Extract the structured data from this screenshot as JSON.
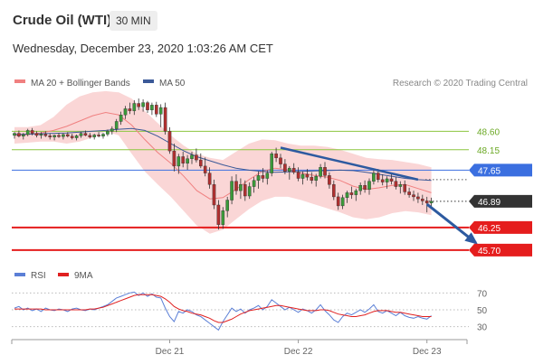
{
  "header": {
    "title": "Crude Oil (WTI)",
    "timeframe": "30 MIN",
    "datetime": "Wednesday, December 23, 2020 1:03:26 AM CET"
  },
  "legend_top": {
    "items": [
      {
        "label": "MA 20 + Bollinger Bands",
        "color": "#f08080"
      },
      {
        "label": "MA 50",
        "color": "#3b5998"
      }
    ],
    "credit": "Research © 2020 Trading Central"
  },
  "legend_bottom": {
    "items": [
      {
        "label": "RSI",
        "color": "#5b7fd6"
      },
      {
        "label": "9MA",
        "color": "#e02020"
      }
    ]
  },
  "chart_data": {
    "type": "candlestick",
    "price_axis": {
      "range": [
        45.3,
        49.6
      ]
    },
    "levels": [
      {
        "value": 48.6,
        "label": "48.60",
        "color": "#8cc63f",
        "kind": "resistance",
        "style": "text"
      },
      {
        "value": 48.15,
        "label": "48.15",
        "color": "#8cc63f",
        "kind": "resistance",
        "style": "text"
      },
      {
        "value": 47.65,
        "label": "47.65",
        "color": "#3b6fe0",
        "kind": "pivot",
        "style": "tag"
      },
      {
        "value": 46.89,
        "label": "46.89",
        "color": "#333333",
        "kind": "last",
        "style": "tag"
      },
      {
        "value": 46.25,
        "label": "46.25",
        "color": "#e51d1d",
        "kind": "support",
        "style": "tag"
      },
      {
        "value": 45.7,
        "label": "45.70",
        "color": "#e51d1d",
        "kind": "support",
        "style": "tag"
      }
    ],
    "candles": [
      [
        48.5,
        48.58,
        48.42,
        48.55
      ],
      [
        48.55,
        48.62,
        48.45,
        48.48
      ],
      [
        48.48,
        48.56,
        48.4,
        48.52
      ],
      [
        48.52,
        48.66,
        48.48,
        48.62
      ],
      [
        48.62,
        48.68,
        48.5,
        48.55
      ],
      [
        48.55,
        48.6,
        48.45,
        48.5
      ],
      [
        48.5,
        48.58,
        48.42,
        48.53
      ],
      [
        48.53,
        48.6,
        48.46,
        48.49
      ],
      [
        48.49,
        48.55,
        48.4,
        48.46
      ],
      [
        48.46,
        48.52,
        48.38,
        48.5
      ],
      [
        48.5,
        48.56,
        48.44,
        48.47
      ],
      [
        48.47,
        48.55,
        48.4,
        48.52
      ],
      [
        48.52,
        48.58,
        48.45,
        48.48
      ],
      [
        48.48,
        48.54,
        48.4,
        48.44
      ],
      [
        48.44,
        48.52,
        48.38,
        48.49
      ],
      [
        48.49,
        48.58,
        48.44,
        48.55
      ],
      [
        48.55,
        48.62,
        48.48,
        48.5
      ],
      [
        48.5,
        48.56,
        48.42,
        48.46
      ],
      [
        48.46,
        48.54,
        48.4,
        48.51
      ],
      [
        48.51,
        48.58,
        48.45,
        48.48
      ],
      [
        48.48,
        48.56,
        48.42,
        48.53
      ],
      [
        48.53,
        48.64,
        48.48,
        48.6
      ],
      [
        48.6,
        48.72,
        48.52,
        48.66
      ],
      [
        48.66,
        48.9,
        48.58,
        48.84
      ],
      [
        48.84,
        49.08,
        48.76,
        49.0
      ],
      [
        49.0,
        49.22,
        48.9,
        49.15
      ],
      [
        49.15,
        49.3,
        49.02,
        49.1
      ],
      [
        49.1,
        49.36,
        49.0,
        49.28
      ],
      [
        49.28,
        49.4,
        49.12,
        49.2
      ],
      [
        49.2,
        49.38,
        49.08,
        49.3
      ],
      [
        49.3,
        49.34,
        49.05,
        49.12
      ],
      [
        49.12,
        49.3,
        49.0,
        49.24
      ],
      [
        49.24,
        49.32,
        48.95,
        49.02
      ],
      [
        49.02,
        49.26,
        48.7,
        49.18
      ],
      [
        49.18,
        49.3,
        48.52,
        48.6
      ],
      [
        48.6,
        48.7,
        48.05,
        48.12
      ],
      [
        48.12,
        48.3,
        47.62,
        47.75
      ],
      [
        47.75,
        48.05,
        47.56,
        47.98
      ],
      [
        47.98,
        48.1,
        47.72,
        47.82
      ],
      [
        47.82,
        48.02,
        47.66,
        47.93
      ],
      [
        47.93,
        48.1,
        47.8,
        48.02
      ],
      [
        48.02,
        48.18,
        47.84,
        47.9
      ],
      [
        47.9,
        48.06,
        47.7,
        47.75
      ],
      [
        47.75,
        47.96,
        47.5,
        47.58
      ],
      [
        47.58,
        47.72,
        47.2,
        47.3
      ],
      [
        47.3,
        47.42,
        46.7,
        46.8
      ],
      [
        46.8,
        46.92,
        46.2,
        46.32
      ],
      [
        46.32,
        46.75,
        46.22,
        46.66
      ],
      [
        46.66,
        47.0,
        46.5,
        46.92
      ],
      [
        46.92,
        47.5,
        46.82,
        47.38
      ],
      [
        47.38,
        47.55,
        47.05,
        47.15
      ],
      [
        47.15,
        47.45,
        46.95,
        47.3
      ],
      [
        47.3,
        47.4,
        46.9,
        47.02
      ],
      [
        47.02,
        47.35,
        46.95,
        47.25
      ],
      [
        47.25,
        47.48,
        47.1,
        47.4
      ],
      [
        47.4,
        47.62,
        47.2,
        47.52
      ],
      [
        47.52,
        47.7,
        47.35,
        47.45
      ],
      [
        47.45,
        47.65,
        47.3,
        47.58
      ],
      [
        47.58,
        48.1,
        47.5,
        48.05
      ],
      [
        48.05,
        48.2,
        47.85,
        47.95
      ],
      [
        47.95,
        48.05,
        47.7,
        47.8
      ],
      [
        47.8,
        47.92,
        47.55,
        47.62
      ],
      [
        47.62,
        47.75,
        47.42,
        47.7
      ],
      [
        47.7,
        47.82,
        47.55,
        47.6
      ],
      [
        47.6,
        47.72,
        47.38,
        47.45
      ],
      [
        47.45,
        47.62,
        47.3,
        47.55
      ],
      [
        47.55,
        47.68,
        47.4,
        47.48
      ],
      [
        47.48,
        47.6,
        47.32,
        47.4
      ],
      [
        47.4,
        47.56,
        47.25,
        47.5
      ],
      [
        47.5,
        47.8,
        47.45,
        47.72
      ],
      [
        47.72,
        47.85,
        47.45,
        47.52
      ],
      [
        47.52,
        47.6,
        47.2,
        47.3
      ],
      [
        47.3,
        47.4,
        46.92,
        47.0
      ],
      [
        47.0,
        47.1,
        46.68,
        46.78
      ],
      [
        46.78,
        47.05,
        46.7,
        46.98
      ],
      [
        46.98,
        47.15,
        46.85,
        47.1
      ],
      [
        47.1,
        47.25,
        46.95,
        47.05
      ],
      [
        47.05,
        47.2,
        46.9,
        47.15
      ],
      [
        47.15,
        47.35,
        47.05,
        47.28
      ],
      [
        47.28,
        47.4,
        47.1,
        47.18
      ],
      [
        47.18,
        47.45,
        47.05,
        47.38
      ],
      [
        47.38,
        47.66,
        47.3,
        47.58
      ],
      [
        47.58,
        47.68,
        47.35,
        47.42
      ],
      [
        47.42,
        47.55,
        47.28,
        47.36
      ],
      [
        47.36,
        47.5,
        47.2,
        47.44
      ],
      [
        47.44,
        47.56,
        47.3,
        47.38
      ],
      [
        47.38,
        47.48,
        47.18,
        47.25
      ],
      [
        47.25,
        47.38,
        47.08,
        47.3
      ],
      [
        47.3,
        47.4,
        47.05,
        47.12
      ],
      [
        47.12,
        47.22,
        46.98,
        47.05
      ],
      [
        47.05,
        47.15,
        46.9,
        47.0
      ],
      [
        47.0,
        47.1,
        46.85,
        46.95
      ],
      [
        46.95,
        47.05,
        46.8,
        46.9
      ],
      [
        46.9,
        47.0,
        46.62,
        46.85
      ],
      [
        46.85,
        46.98,
        46.75,
        46.89
      ]
    ],
    "ma50": [
      48.52,
      48.53,
      48.54,
      48.55,
      48.56,
      48.58,
      48.6,
      48.62,
      48.65,
      48.67,
      48.62,
      48.48,
      48.3,
      48.12,
      47.98,
      47.88,
      47.78,
      47.7,
      47.65,
      47.62,
      47.6,
      47.61,
      47.62,
      47.63,
      47.64,
      47.65,
      47.64,
      47.6,
      47.55,
      47.5,
      47.45,
      47.42,
      47.4
    ],
    "ma20": [
      48.5,
      48.52,
      48.56,
      48.62,
      48.72,
      48.85,
      48.98,
      49.06,
      49.0,
      48.75,
      48.4,
      48.08,
      47.82,
      47.5,
      47.15,
      46.95,
      46.98,
      47.18,
      47.42,
      47.62,
      47.7,
      47.66,
      47.58,
      47.52,
      47.48,
      47.4,
      47.26,
      47.18,
      47.22,
      47.28,
      47.3,
      47.2,
      47.1
    ],
    "bollinger_upper": [
      48.7,
      48.7,
      48.75,
      48.95,
      49.25,
      49.45,
      49.55,
      49.58,
      49.55,
      49.4,
      49.1,
      48.8,
      48.5,
      48.25,
      48.05,
      47.95,
      47.9,
      48.1,
      48.3,
      48.4,
      48.38,
      48.3,
      48.25,
      48.25,
      48.22,
      48.15,
      48.05,
      47.95,
      47.92,
      47.9,
      47.85,
      47.8,
      47.72
    ],
    "bollinger_lower": [
      48.3,
      48.32,
      48.35,
      48.35,
      48.3,
      48.35,
      48.45,
      48.6,
      48.5,
      48.05,
      47.62,
      47.3,
      47.0,
      46.65,
      46.3,
      46.1,
      46.2,
      46.45,
      46.7,
      46.9,
      47.0,
      47.0,
      46.92,
      46.82,
      46.72,
      46.62,
      46.5,
      46.45,
      46.5,
      46.6,
      46.65,
      46.62,
      46.55
    ],
    "trendline": {
      "from_index": 60,
      "to_index": 91,
      "from_value": 48.2,
      "to_value": 47.42
    },
    "forecast_arrow": {
      "from_index": 93,
      "from_value": 46.82,
      "to_index": 104,
      "to_value": 45.88
    },
    "rsi": {
      "ticks": [
        70,
        50,
        30
      ],
      "range": [
        20,
        80
      ],
      "values": [
        52,
        54,
        50,
        52,
        49,
        51,
        48,
        52,
        50,
        49,
        51,
        50,
        48,
        51,
        52,
        50,
        49,
        51,
        50,
        52,
        54,
        56,
        60,
        64,
        66,
        68,
        70,
        71,
        67,
        70,
        66,
        69,
        65,
        64,
        52,
        42,
        36,
        48,
        46,
        50,
        48,
        44,
        42,
        38,
        34,
        30,
        26,
        36,
        44,
        52,
        48,
        51,
        46,
        50,
        52,
        55,
        50,
        54,
        62,
        58,
        54,
        50,
        53,
        50,
        47,
        51,
        49,
        46,
        50,
        56,
        49,
        44,
        38,
        35,
        42,
        46,
        44,
        47,
        50,
        47,
        51,
        56,
        48,
        46,
        49,
        46,
        43,
        47,
        43,
        41,
        40,
        42,
        40,
        39,
        43
      ],
      "ma9": [
        51,
        51,
        51,
        51,
        51,
        51,
        51,
        50,
        50,
        50,
        50,
        50,
        50,
        50,
        50,
        50,
        50,
        51,
        51,
        52,
        53,
        55,
        57,
        59,
        61,
        63,
        65,
        67,
        68,
        68,
        68,
        68,
        67,
        66,
        63,
        59,
        54,
        51,
        49,
        48,
        46,
        45,
        44,
        42,
        40,
        37,
        35,
        35,
        37,
        39,
        42,
        45,
        47,
        49,
        50,
        51,
        52,
        53,
        54,
        55,
        55,
        54,
        53,
        52,
        51,
        50,
        49,
        49,
        49,
        50,
        50,
        49,
        47,
        45,
        44,
        43,
        42,
        42,
        43,
        44,
        46,
        48,
        49,
        49,
        49,
        48,
        47,
        47,
        46,
        45,
        44,
        43,
        42,
        42,
        42
      ]
    },
    "x_axis": {
      "labels": [
        {
          "label": "Dec 21",
          "index": 35
        },
        {
          "label": "Dec 22",
          "index": 64
        },
        {
          "label": "Dec 23",
          "index": 93
        }
      ]
    },
    "colors": {
      "up": "#3a9a3a",
      "down": "#b03030",
      "band": "#f8c8c8",
      "ma20": "#f08080",
      "ma50": "#3b5998",
      "trend": "#2d5aa0",
      "rsi": "#5b7fd6",
      "rsi_ma": "#e02020"
    }
  }
}
